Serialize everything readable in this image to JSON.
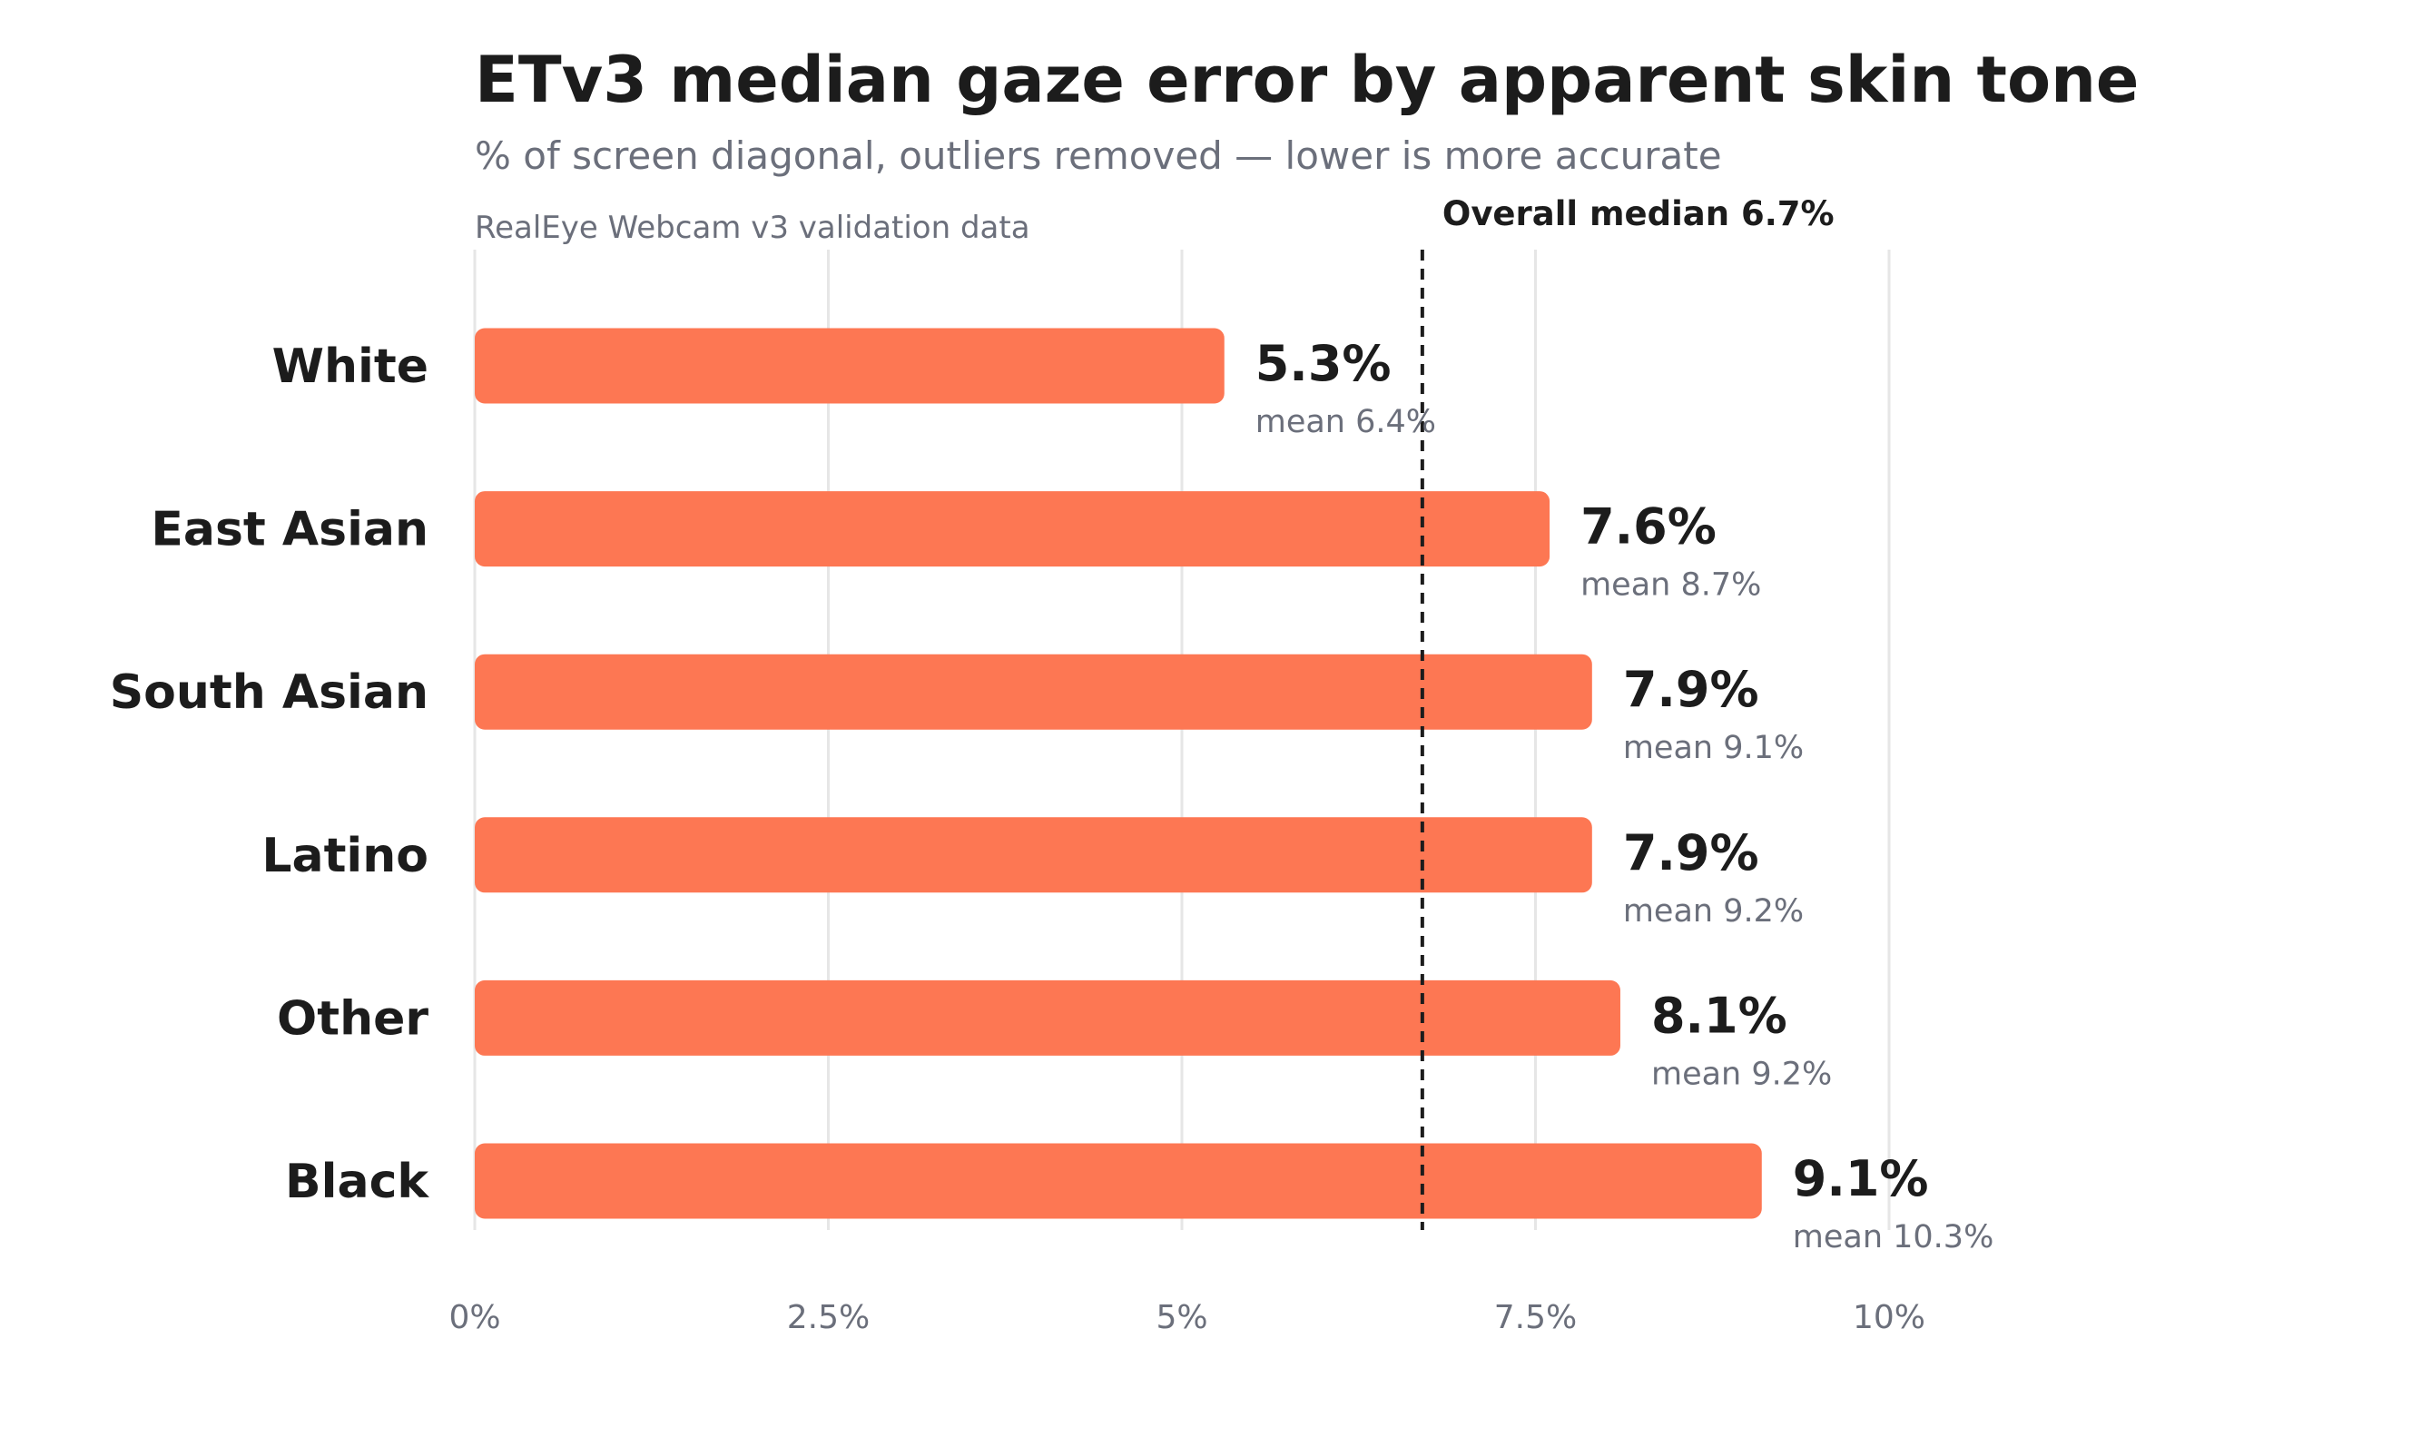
{
  "chart_data": {
    "type": "bar",
    "orientation": "horizontal",
    "title": "ETv3 median gaze error by apparent skin tone",
    "subtitle": "% of screen diagonal, outliers removed — lower is more accurate",
    "source": "RealEye Webcam v3 validation data",
    "categories": [
      "White",
      "East Asian",
      "South Asian",
      "Latino",
      "Other",
      "Black"
    ],
    "series": [
      {
        "values": [
          5.3,
          7.6,
          7.9,
          7.9,
          8.1,
          9.1
        ],
        "value_labels": [
          "5.3%",
          "7.6%",
          "7.9%",
          "7.9%",
          "8.1%",
          "9.1%"
        ]
      },
      {
        "values": [
          6.4,
          8.7,
          9.1,
          9.2,
          9.2,
          10.3
        ],
        "value_labels": [
          "mean 6.4%",
          "mean 8.7%",
          "mean 9.1%",
          "mean 9.2%",
          "mean 9.2%",
          "mean 10.3%"
        ]
      }
    ],
    "xlim": [
      0,
      10
    ],
    "x_ticks": [
      0,
      2.5,
      5,
      7.5,
      10
    ],
    "x_tick_labels": [
      "0%",
      "2.5%",
      "5%",
      "7.5%",
      "10%"
    ],
    "xlabel": "",
    "ylabel": "",
    "grid": "vertical",
    "reference_line": {
      "value": 6.7,
      "label": "Overall median 6.7%"
    },
    "colors": {
      "bar": "#fd7753",
      "text": "#1c1c1c",
      "muted": "#6b6f7b",
      "grid": "#e6e6e6",
      "reference": "#1c1c1c"
    }
  }
}
